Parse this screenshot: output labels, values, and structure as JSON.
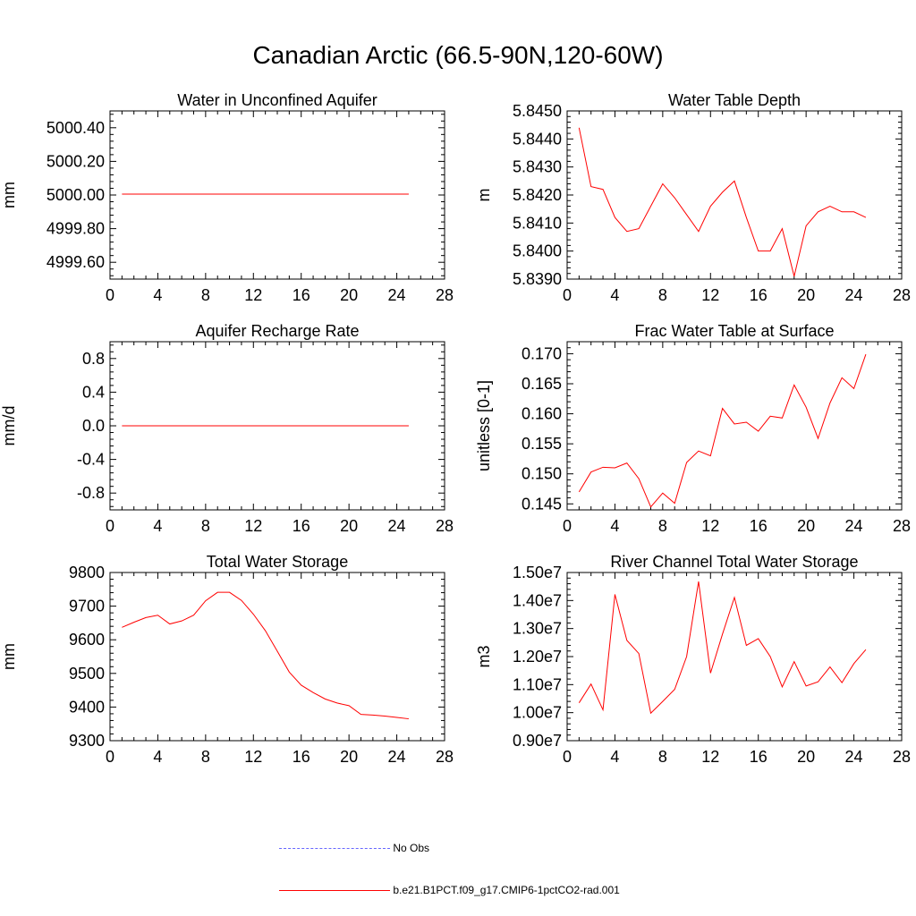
{
  "title": "Canadian Arctic (66.5-90N,120-60W)",
  "colors": {
    "model": "#ff0000",
    "obs": "#6666ff",
    "axis": "#000000"
  },
  "legend": {
    "obs_label": "No Obs",
    "model_label": "b.e21.B1PCT.f09_g17.CMIP6-1pctCO2-rad.001"
  },
  "chart_data": [
    {
      "type": "line",
      "title": "Water in Unconfined Aquifer",
      "ylabel": "mm",
      "xlabel": "",
      "xlim": [
        0,
        28
      ],
      "x_ticks": [
        0,
        4,
        8,
        12,
        16,
        20,
        24,
        28
      ],
      "ylim": [
        4999.5,
        5000.5
      ],
      "y_ticks": [
        4999.6,
        4999.8,
        5000.0,
        5000.2,
        5000.4
      ],
      "y_tick_labels": [
        "4999.60",
        "4999.80",
        "5000.00",
        "5000.20",
        "5000.40"
      ],
      "x": [
        1,
        2,
        3,
        4,
        5,
        6,
        7,
        8,
        9,
        10,
        11,
        12,
        13,
        14,
        15,
        16,
        17,
        18,
        19,
        20,
        21,
        22,
        23,
        24,
        25
      ],
      "series": [
        {
          "values": [
            5000.005,
            5000.005,
            5000.005,
            5000.005,
            5000.005,
            5000.005,
            5000.005,
            5000.005,
            5000.005,
            5000.005,
            5000.005,
            5000.005,
            5000.005,
            5000.005,
            5000.005,
            5000.005,
            5000.005,
            5000.005,
            5000.005,
            5000.005,
            5000.005,
            5000.005,
            5000.005,
            5000.005,
            5000.005
          ]
        }
      ],
      "grid": false
    },
    {
      "type": "line",
      "title": "Water Table Depth",
      "ylabel": "m",
      "xlabel": "",
      "xlim": [
        0,
        28
      ],
      "x_ticks": [
        0,
        4,
        8,
        12,
        16,
        20,
        24,
        28
      ],
      "ylim": [
        5.839,
        5.845
      ],
      "y_ticks": [
        5.839,
        5.84,
        5.841,
        5.842,
        5.843,
        5.844,
        5.845
      ],
      "y_tick_labels": [
        "5.8390",
        "5.8400",
        "5.8410",
        "5.8420",
        "5.8430",
        "5.8440",
        "5.8450"
      ],
      "x": [
        1,
        2,
        3,
        4,
        5,
        6,
        7,
        8,
        9,
        10,
        11,
        12,
        13,
        14,
        15,
        16,
        17,
        18,
        19,
        20,
        21,
        22,
        23,
        24,
        25
      ],
      "series": [
        {
          "values": [
            5.8444,
            5.8423,
            5.8422,
            5.8412,
            5.8407,
            5.8408,
            5.8416,
            5.8424,
            5.8419,
            5.8413,
            5.8407,
            5.8416,
            5.8421,
            5.8425,
            5.8412,
            5.84,
            5.84,
            5.8408,
            5.8391,
            5.8409,
            5.8414,
            5.8416,
            5.8414,
            5.8414,
            5.8412
          ]
        }
      ],
      "grid": false
    },
    {
      "type": "line",
      "title": "Aquifer Recharge Rate",
      "ylabel": "mm/d",
      "xlabel": "",
      "xlim": [
        0,
        28
      ],
      "x_ticks": [
        0,
        4,
        8,
        12,
        16,
        20,
        24,
        28
      ],
      "ylim": [
        -1.0,
        1.0
      ],
      "y_ticks": [
        -0.8,
        -0.4,
        0.0,
        0.4,
        0.8
      ],
      "y_tick_labels": [
        "-0.8",
        "-0.4",
        "0.0",
        "0.4",
        "0.8"
      ],
      "x": [
        1,
        2,
        3,
        4,
        5,
        6,
        7,
        8,
        9,
        10,
        11,
        12,
        13,
        14,
        15,
        16,
        17,
        18,
        19,
        20,
        21,
        22,
        23,
        24,
        25
      ],
      "series": [
        {
          "values": [
            0,
            0,
            0,
            0,
            0,
            0,
            0,
            0,
            0,
            0,
            0,
            0,
            0,
            0,
            0,
            0,
            0,
            0,
            0,
            0,
            0,
            0,
            0,
            0,
            0
          ]
        }
      ],
      "grid": false
    },
    {
      "type": "line",
      "title": "Frac Water Table at Surface",
      "ylabel": "unitless [0-1]",
      "xlabel": "",
      "xlim": [
        0,
        28
      ],
      "x_ticks": [
        0,
        4,
        8,
        12,
        16,
        20,
        24,
        28
      ],
      "ylim": [
        0.144,
        0.172
      ],
      "y_ticks": [
        0.145,
        0.15,
        0.155,
        0.16,
        0.165,
        0.17
      ],
      "y_tick_labels": [
        "0.145",
        "0.150",
        "0.155",
        "0.160",
        "0.165",
        "0.170"
      ],
      "x": [
        1,
        2,
        3,
        4,
        5,
        6,
        7,
        8,
        9,
        10,
        11,
        12,
        13,
        14,
        15,
        16,
        17,
        18,
        19,
        20,
        21,
        22,
        23,
        24,
        25
      ],
      "series": [
        {
          "values": [
            0.147,
            0.1503,
            0.1511,
            0.151,
            0.1518,
            0.1492,
            0.1445,
            0.1468,
            0.1451,
            0.1519,
            0.1538,
            0.153,
            0.1609,
            0.1583,
            0.1586,
            0.1571,
            0.1596,
            0.1593,
            0.1648,
            0.1611,
            0.1559,
            0.1618,
            0.166,
            0.1642,
            0.1699
          ]
        }
      ],
      "grid": false
    },
    {
      "type": "line",
      "title": "Total Water Storage",
      "ylabel": "mm",
      "xlabel": "",
      "xlim": [
        0,
        28
      ],
      "x_ticks": [
        0,
        4,
        8,
        12,
        16,
        20,
        24,
        28
      ],
      "ylim": [
        9300,
        9800
      ],
      "y_ticks": [
        9300,
        9400,
        9500,
        9600,
        9700,
        9800
      ],
      "y_tick_labels": [
        "9300",
        "9400",
        "9500",
        "9600",
        "9700",
        "9800"
      ],
      "x": [
        1,
        2,
        3,
        4,
        5,
        6,
        7,
        8,
        9,
        10,
        11,
        12,
        13,
        14,
        15,
        16,
        17,
        18,
        19,
        20,
        21,
        22,
        23,
        24,
        25
      ],
      "series": [
        {
          "values": [
            9637,
            9652,
            9666,
            9673,
            9647,
            9656,
            9673,
            9716,
            9741,
            9741,
            9717,
            9676,
            9627,
            9566,
            9504,
            9465,
            9443,
            9424,
            9412,
            9404,
            9378,
            9376,
            9373,
            9369,
            9365
          ]
        }
      ],
      "grid": false
    },
    {
      "type": "line",
      "title": "River Channel Total Water Storage",
      "ylabel": "m3",
      "xlabel": "",
      "xlim": [
        0,
        28
      ],
      "x_ticks": [
        0,
        4,
        8,
        12,
        16,
        20,
        24,
        28
      ],
      "ylim": [
        9000000.0,
        15000000.0
      ],
      "y_ticks": [
        9000000.0,
        10000000.0,
        11000000.0,
        12000000.0,
        13000000.0,
        14000000.0,
        15000000.0
      ],
      "y_tick_labels": [
        "0.90e7",
        "1.00e7",
        "1.10e7",
        "1.20e7",
        "1.30e7",
        "1.40e7",
        "1.50e7"
      ],
      "x": [
        1,
        2,
        3,
        4,
        5,
        6,
        7,
        8,
        9,
        10,
        11,
        12,
        13,
        14,
        15,
        16,
        17,
        18,
        19,
        20,
        21,
        22,
        23,
        24,
        25
      ],
      "series": [
        {
          "values": [
            10350000.0,
            11020000.0,
            10100000.0,
            14220000.0,
            12580000.0,
            12110000.0,
            9980000.0,
            10400000.0,
            10830000.0,
            12000000.0,
            14680000.0,
            11410000.0,
            12800000.0,
            14110000.0,
            12400000.0,
            12640000.0,
            12000000.0,
            10920000.0,
            11820000.0,
            10950000.0,
            11100000.0,
            11630000.0,
            11070000.0,
            11750000.0,
            12250000.0
          ]
        }
      ],
      "grid": false
    }
  ]
}
